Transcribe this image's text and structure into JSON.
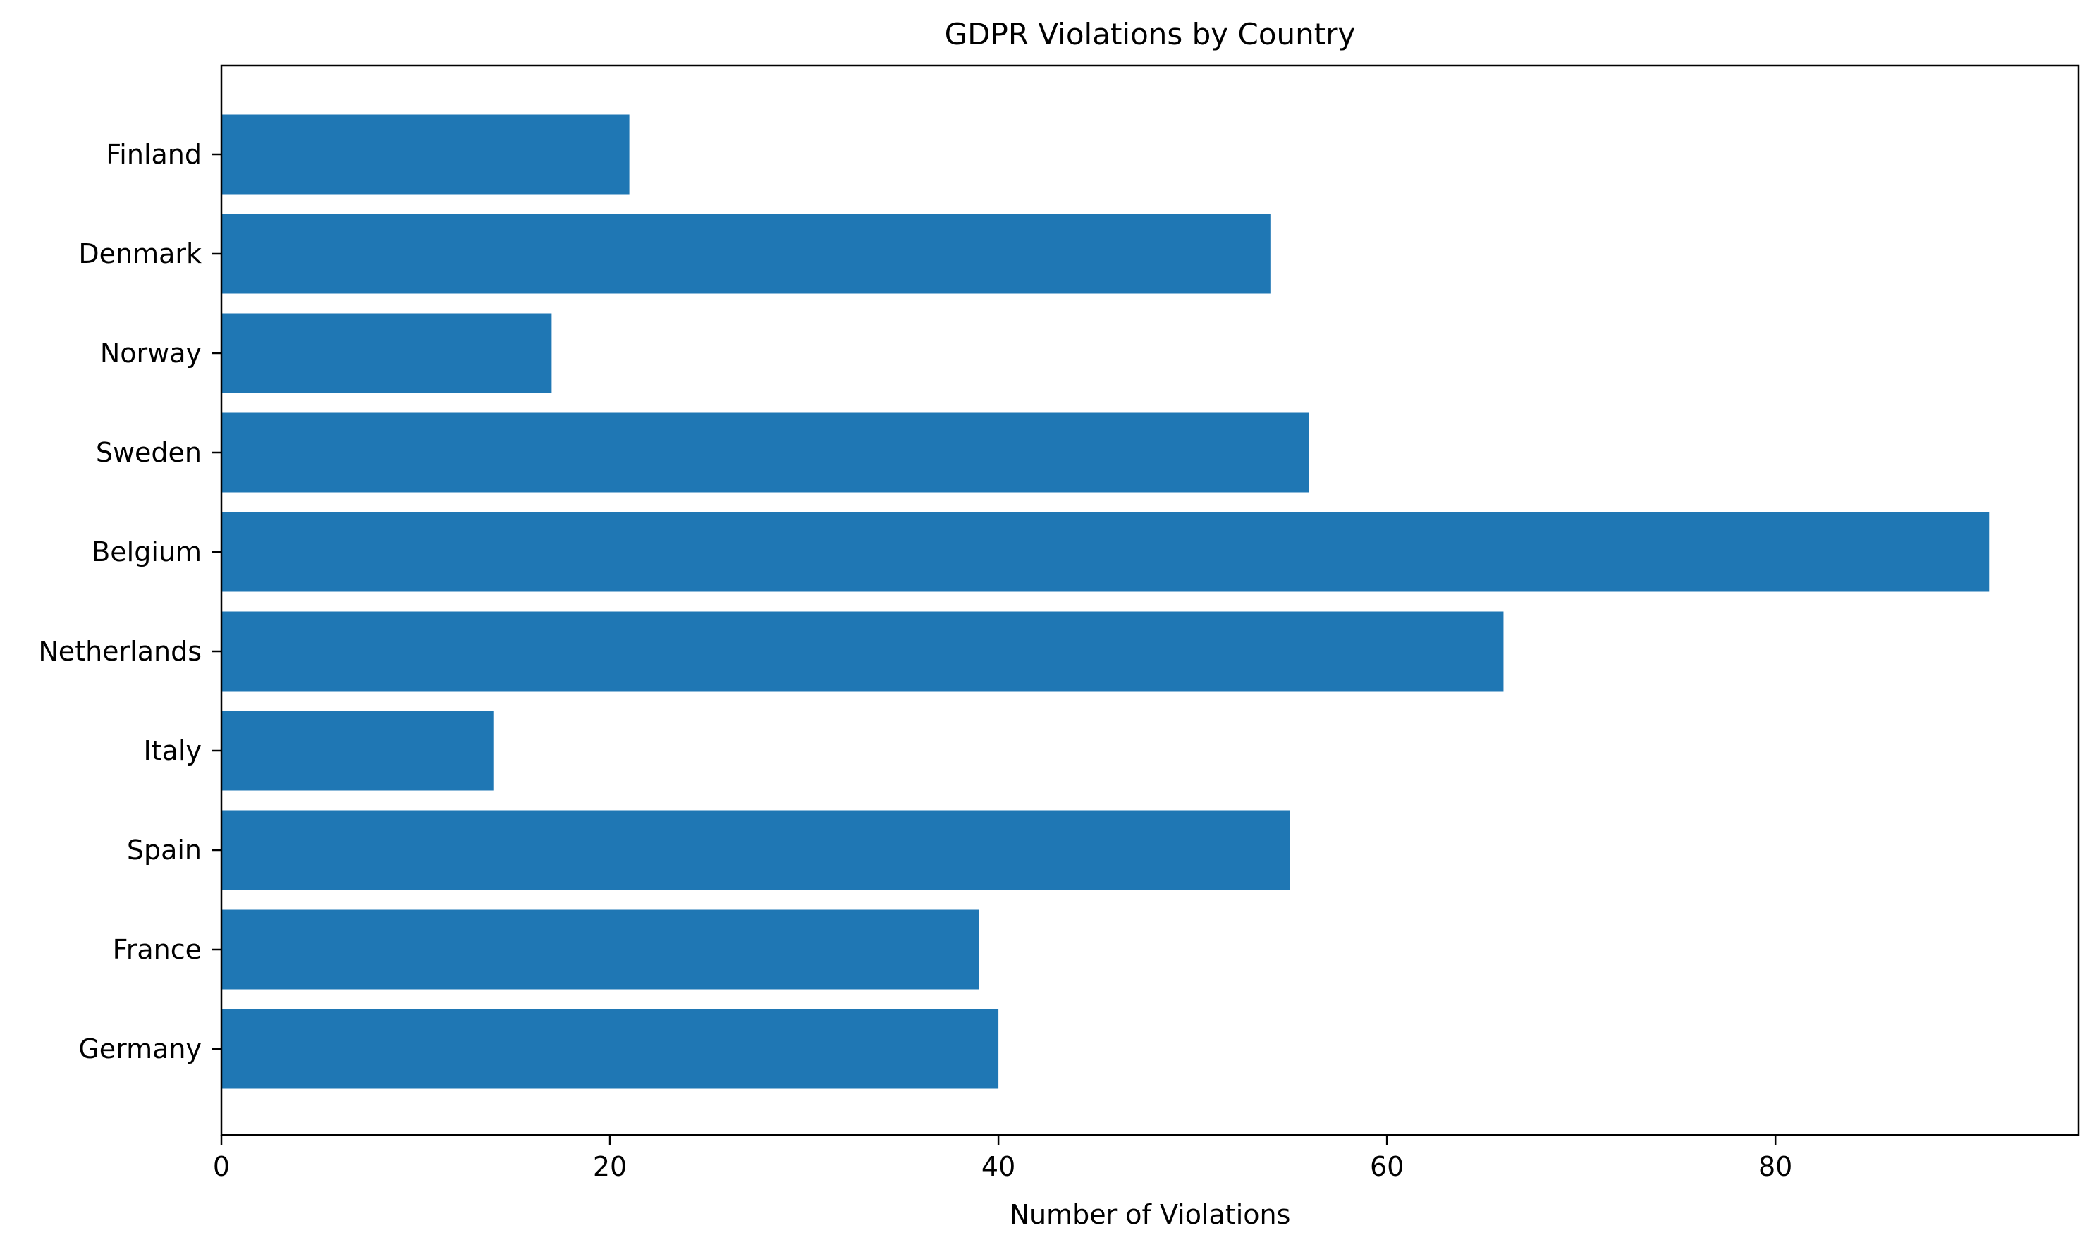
{
  "chart_data": {
    "type": "bar",
    "orientation": "horizontal",
    "title": "GDPR Violations by Country",
    "xlabel": "Number of Violations",
    "ylabel": "",
    "categories": [
      "Germany",
      "France",
      "Spain",
      "Italy",
      "Netherlands",
      "Belgium",
      "Sweden",
      "Norway",
      "Denmark",
      "Finland"
    ],
    "values": [
      40,
      39,
      55,
      14,
      66,
      91,
      56,
      17,
      54,
      21
    ],
    "xlim": [
      0,
      95.6
    ],
    "xticks": [
      0,
      20,
      40,
      60,
      80
    ],
    "grid": false,
    "legend": "none",
    "colors": {
      "bar": "#1f77b4"
    }
  }
}
